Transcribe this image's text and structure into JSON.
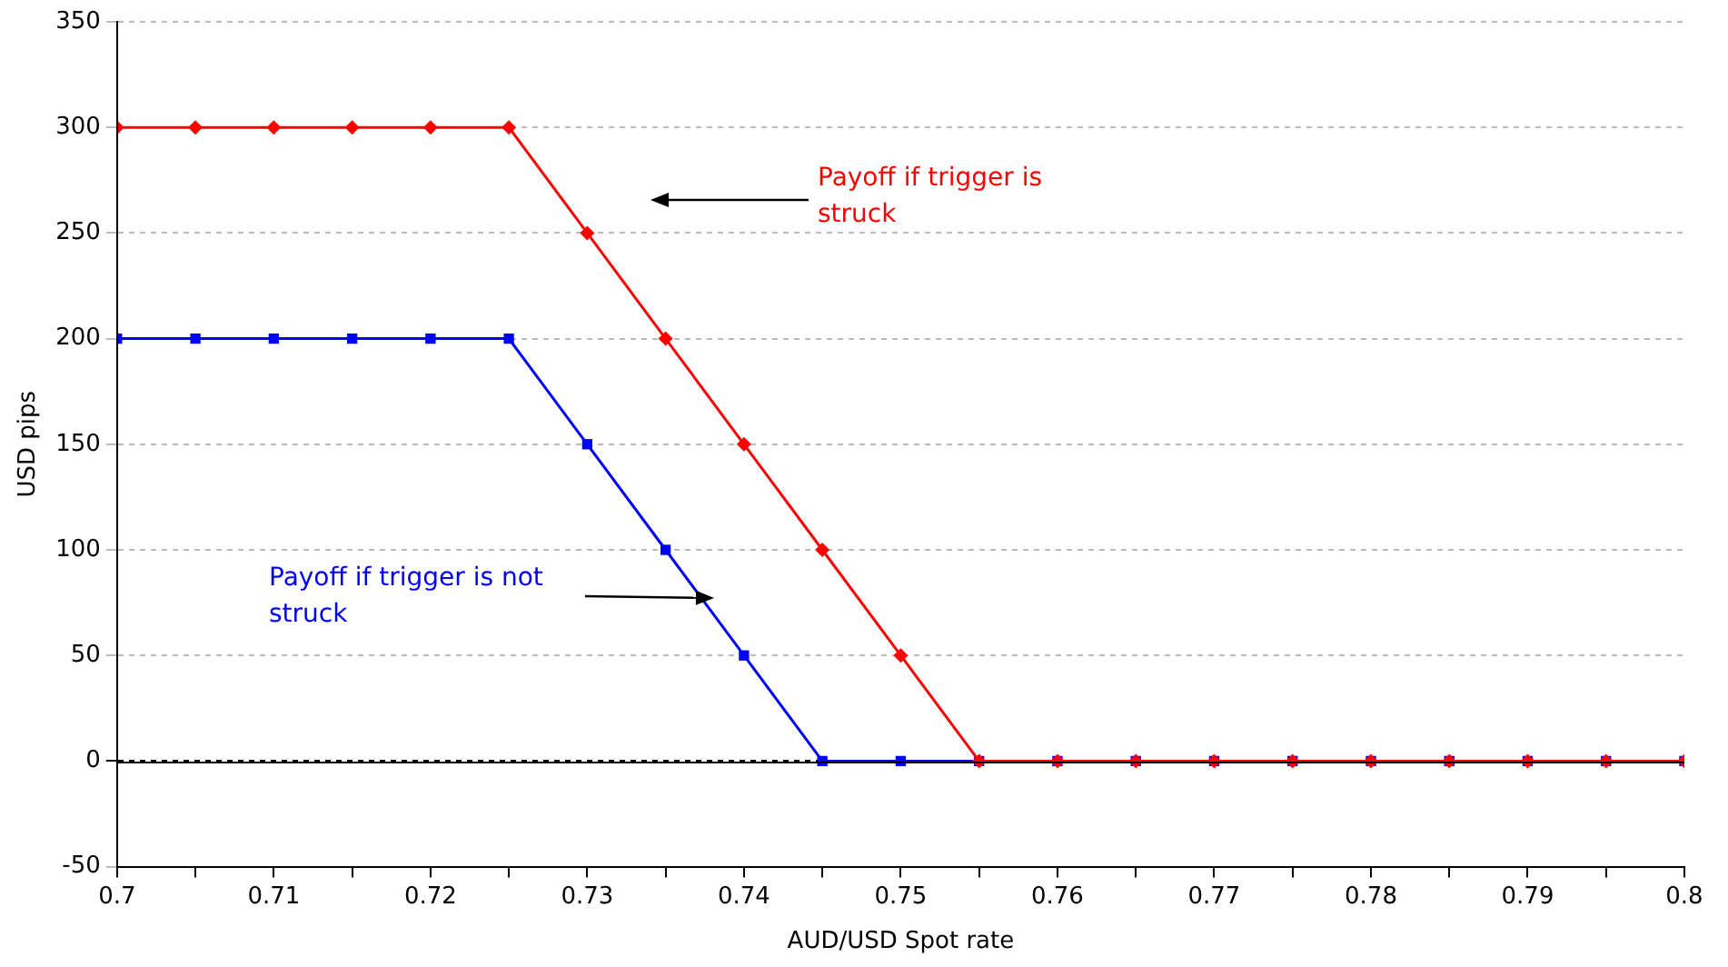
{
  "chart_data": {
    "type": "line",
    "xlabel": "AUD/USD Spot rate",
    "ylabel": "USD pips",
    "x": [
      0.7,
      0.705,
      0.71,
      0.715,
      0.72,
      0.725,
      0.73,
      0.735,
      0.74,
      0.745,
      0.75,
      0.755,
      0.76,
      0.765,
      0.77,
      0.775,
      0.78,
      0.785,
      0.79,
      0.795,
      0.8
    ],
    "series": [
      {
        "color": "#ff0000",
        "marker": "diamond",
        "values": [
          300,
          300,
          300,
          300,
          300,
          300,
          250,
          200,
          150,
          100,
          50,
          0,
          0,
          0,
          0,
          0,
          0,
          0,
          0,
          0,
          0
        ]
      },
      {
        "color": "#0000ff",
        "marker": "square",
        "values": [
          200,
          200,
          200,
          200,
          200,
          200,
          150,
          100,
          50,
          0,
          0,
          0,
          0,
          0,
          0,
          0,
          0,
          0,
          0,
          0,
          0
        ]
      }
    ],
    "annotations": [
      "Payoff if trigger is struck",
      "Payoff if trigger is not struck"
    ],
    "xlim": [
      0.7,
      0.8
    ],
    "xticks": [
      0.7,
      {
        "value": 0.705,
        "label": null
      },
      0.71,
      {
        "value": 0.715,
        "label": null
      },
      0.72,
      {
        "value": 0.725,
        "label": null
      },
      0.73,
      {
        "value": 0.735,
        "label": null
      },
      0.74,
      {
        "value": 0.745,
        "label": null
      },
      0.75,
      {
        "value": 0.755,
        "label": null
      },
      0.76,
      {
        "value": 0.765,
        "label": null
      },
      0.77,
      {
        "value": 0.775,
        "label": null
      },
      0.78,
      {
        "value": 0.785,
        "label": null
      },
      0.79,
      {
        "value": 0.795,
        "label": null
      },
      0.8
    ],
    "ylim": [
      -50,
      350
    ],
    "yticks": [
      -50,
      0,
      50,
      100,
      150,
      200,
      250,
      300,
      350
    ],
    "ref_lines": [
      {
        "axis": "y",
        "value": 0,
        "color": "#000000"
      }
    ],
    "grid": "y",
    "legend": false
  }
}
